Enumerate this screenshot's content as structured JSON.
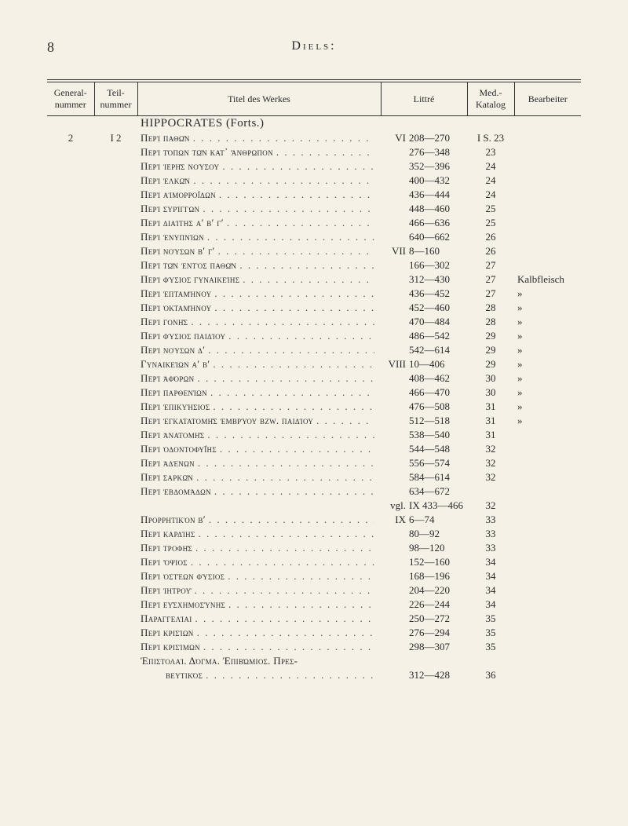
{
  "page_number": "8",
  "running_head": "Diels:",
  "columns": {
    "general_nummer": "General-\nnummer",
    "teil_nummer": "Teil-\nnummer",
    "titel": "Titel des Werkes",
    "littre": "Littré",
    "med_katalog": "Med.-\nKatalog",
    "bearbeiter": "Bearbeiter"
  },
  "section": "HIPPOCRATES (Forts.)",
  "group_general": "2",
  "group_teil": "I 2",
  "entries": [
    {
      "title": "Περὶ παθῶν",
      "vol": "VI",
      "range": "208—270",
      "med": "I S. 23",
      "bearb": ""
    },
    {
      "title": "Περὶ τόπων τῶν κατ᾽ ἄνθρωπον",
      "vol": "",
      "range": "276—348",
      "med": "23",
      "bearb": ""
    },
    {
      "title": "Περὶ ἱερῆς νούσου",
      "vol": "",
      "range": "352—396",
      "med": "24",
      "bearb": ""
    },
    {
      "title": "Περὶ ἑλκῶν",
      "vol": "",
      "range": "400—432",
      "med": "24",
      "bearb": ""
    },
    {
      "title": "Περὶ αἱμορροΐδων",
      "vol": "",
      "range": "436—444",
      "med": "24",
      "bearb": ""
    },
    {
      "title": "Περὶ συρίγγων",
      "vol": "",
      "range": "448—460",
      "med": "25",
      "bearb": ""
    },
    {
      "title": "Περὶ διαίτης α′ β′ γ′",
      "vol": "",
      "range": "466—636",
      "med": "25",
      "bearb": ""
    },
    {
      "title": "Περὶ ἐνυπνίων",
      "vol": "",
      "range": "640—662",
      "med": "26",
      "bearb": ""
    },
    {
      "title": "Περὶ νούσων β′ γ′",
      "vol": "VII",
      "range": "8—160",
      "med": "26",
      "bearb": ""
    },
    {
      "title": "Περὶ τῶν ἐντὸς παθῶν",
      "vol": "",
      "range": "166—302",
      "med": "27",
      "bearb": ""
    },
    {
      "title": "Περὶ φύσιος γυναικείης",
      "vol": "",
      "range": "312—430",
      "med": "27",
      "bearb": "Kalbfleisch"
    },
    {
      "title": "Περὶ ἑπταμήνου",
      "vol": "",
      "range": "436—452",
      "med": "27",
      "bearb": "»"
    },
    {
      "title": "Περὶ ὀκταμήνου",
      "vol": "",
      "range": "452—460",
      "med": "28",
      "bearb": "»"
    },
    {
      "title": "Περὶ γονῆς",
      "vol": "",
      "range": "470—484",
      "med": "28",
      "bearb": "»"
    },
    {
      "title": "Περὶ φύσιος παιδίου",
      "vol": "",
      "range": "486—542",
      "med": "29",
      "bearb": "»"
    },
    {
      "title": "Περὶ νούσων δ′",
      "vol": "",
      "range": "542—614",
      "med": "29",
      "bearb": "»"
    },
    {
      "title": "Γυναικείων α′ β′",
      "vol": "VIII",
      "range": "10—406",
      "med": "29",
      "bearb": "»"
    },
    {
      "title": "Περὶ ἀφόρων",
      "vol": "",
      "range": "408—462",
      "med": "30",
      "bearb": "»"
    },
    {
      "title": "Περὶ παρθενίων",
      "vol": "",
      "range": "466—470",
      "med": "30",
      "bearb": "»"
    },
    {
      "title": "Περὶ ἐπικυήσιος",
      "vol": "",
      "range": "476—508",
      "med": "31",
      "bearb": "»"
    },
    {
      "title": "Περὶ ἐγκατατομῆς ἐμβρύου bzw. παιδίου",
      "vol": "",
      "range": "512—518",
      "med": "31",
      "bearb": "»"
    },
    {
      "title": "Περὶ ἀνατομῆς",
      "vol": "",
      "range": "538—540",
      "med": "31",
      "bearb": ""
    },
    {
      "title": "Περὶ ὀδοντοφυΐης",
      "vol": "",
      "range": "544—548",
      "med": "32",
      "bearb": ""
    },
    {
      "title": "Περὶ ἀδένων",
      "vol": "",
      "range": "556—574",
      "med": "32",
      "bearb": ""
    },
    {
      "title": "Περὶ σαρκῶν",
      "vol": "",
      "range": "584—614",
      "med": "32",
      "bearb": ""
    },
    {
      "title": "Περὶ ἑβδομάδων",
      "vol": "",
      "range": "634—672",
      "med": "",
      "bearb": ""
    },
    {
      "title": "",
      "vol": "vgl.",
      "range": "IX 433—466",
      "med": "32",
      "bearb": "",
      "no_leaders": true
    },
    {
      "title": "Προρρητικὸν β′",
      "vol": "IX",
      "range": "6—74",
      "med": "33",
      "bearb": ""
    },
    {
      "title": "Περὶ καρδίης",
      "vol": "",
      "range": "80—92",
      "med": "33",
      "bearb": ""
    },
    {
      "title": "Περὶ τροφῆς",
      "vol": "",
      "range": "98—120",
      "med": "33",
      "bearb": ""
    },
    {
      "title": "Περὶ ὄψιος",
      "vol": "",
      "range": "152—160",
      "med": "34",
      "bearb": ""
    },
    {
      "title": "Περὶ ὀστέων φύσιος",
      "vol": "",
      "range": "168—196",
      "med": "34",
      "bearb": ""
    },
    {
      "title": "Περὶ ἰητροῦ",
      "vol": "",
      "range": "204—220",
      "med": "34",
      "bearb": ""
    },
    {
      "title": "Περὶ εὐσχημοσύνης",
      "vol": "",
      "range": "226—244",
      "med": "34",
      "bearb": ""
    },
    {
      "title": "Παραγγελίαι",
      "vol": "",
      "range": "250—272",
      "med": "35",
      "bearb": ""
    },
    {
      "title": "Περὶ κρισίων",
      "vol": "",
      "range": "276—294",
      "med": "35",
      "bearb": ""
    },
    {
      "title": "Περὶ κρισίμων",
      "vol": "",
      "range": "298—307",
      "med": "35",
      "bearb": ""
    },
    {
      "title": "Ἐπιστολαί. Δόγμα. Ἐπιβώμιος. Πρεσ-",
      "vol": "",
      "range": "",
      "med": "",
      "bearb": "",
      "no_leaders": true
    },
    {
      "title": "βευτικός",
      "vol": "",
      "range": "312—428",
      "med": "36",
      "bearb": "",
      "indent": true
    }
  ]
}
